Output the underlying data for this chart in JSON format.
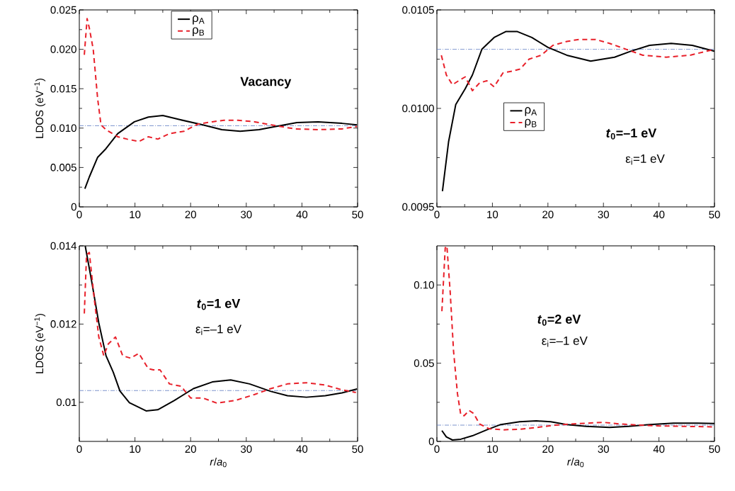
{
  "chart_data": [
    {
      "type": "line",
      "ylabel": "LDOS (eV$^{−1}$)",
      "xlim": [
        0,
        50
      ],
      "xticks": [
        0,
        10,
        20,
        30,
        40,
        50
      ],
      "ylim": [
        0,
        0.025
      ],
      "yticks": [
        0,
        {
          "value": 0.005,
          "label": "0.005"
        },
        {
          "value": 0.01,
          "label": "0.010"
        },
        {
          "value": 0.015,
          "label": "0.015"
        },
        {
          "value": 0.02,
          "label": "0.020"
        },
        {
          "value": 0.025,
          "label": "0.025"
        }
      ],
      "legend": "top",
      "annotations": [
        "Vacancy"
      ],
      "ref_lines": [
        {
          "axis": "y",
          "value": 0.0103,
          "color": "#5a78c0",
          "line_style": "dashdot"
        }
      ],
      "series": [
        {
          "name": "ρ$_{A}$",
          "color": "#000000",
          "line_style": "solid",
          "x": [
            1,
            1.8,
            3.3,
            4.8,
            6.9,
            9.9,
            12.4,
            15,
            17.9,
            22.2,
            25.6,
            28.9,
            32.3,
            35.3,
            39.1,
            42.9,
            47.2,
            49.9
          ],
          "values": [
            0.0023,
            0.0038,
            0.0063,
            0.0074,
            0.0093,
            0.0108,
            0.0114,
            0.0116,
            0.0111,
            0.0104,
            0.0098,
            0.0096,
            0.0098,
            0.0102,
            0.0107,
            0.0108,
            0.0106,
            0.0104
          ]
        },
        {
          "name": "ρ$_{B}$",
          "color": "#e8202a",
          "line_style": "dashed",
          "x": [
            0.9,
            1.4,
            1.8,
            2.5,
            3.3,
            3.9,
            4.8,
            6.9,
            8.6,
            10.7,
            12.4,
            14.1,
            16.2,
            18.8,
            21.3,
            23.9,
            26,
            28.5,
            31.5,
            34.5,
            38.7,
            42.9,
            47.2,
            49.9
          ],
          "values": [
            0.0193,
            0.0239,
            0.0227,
            0.02,
            0.0137,
            0.0104,
            0.0098,
            0.0089,
            0.0086,
            0.0083,
            0.0089,
            0.0086,
            0.0093,
            0.0096,
            0.0105,
            0.0108,
            0.011,
            0.011,
            0.0108,
            0.0104,
            0.0099,
            0.0098,
            0.0099,
            0.0102
          ]
        }
      ]
    },
    {
      "type": "line",
      "xlim": [
        0,
        50
      ],
      "xticks": [
        0,
        10,
        20,
        30,
        40,
        50
      ],
      "ylim": [
        0.0095,
        0.0105
      ],
      "yticks": [
        {
          "value": 0.0095,
          "label": "0.0095"
        },
        {
          "value": 0.01,
          "label": "0.0100"
        },
        {
          "value": 0.0105,
          "label": "0.0105"
        }
      ],
      "legend": "left",
      "annotations": [
        "*t*$_{0}$=–1 eV",
        "ε$_{i}$=1 eV"
      ],
      "ref_lines": [
        {
          "axis": "y",
          "value": 0.0103,
          "color": "#5a78c0",
          "line_style": "dashdot"
        }
      ],
      "series": [
        {
          "name": "ρ$_{A}$",
          "color": "#000000",
          "line_style": "solid",
          "x": [
            1,
            2.1,
            3.4,
            5.1,
            6.4,
            8.1,
            10.3,
            12.4,
            14.5,
            17.1,
            20,
            23.4,
            27.7,
            32,
            34.9,
            38.3,
            42.2,
            46,
            50
          ],
          "values": [
            0.00958,
            0.00983,
            0.01002,
            0.0101,
            0.01017,
            0.0103,
            0.01036,
            0.01039,
            0.01039,
            0.01036,
            0.01031,
            0.01027,
            0.01024,
            0.01026,
            0.01029,
            0.01032,
            0.01033,
            0.01032,
            0.01029
          ]
        },
        {
          "name": "ρ$_{B}$",
          "color": "#e8202a",
          "line_style": "dashed",
          "x": [
            0.8,
            1.7,
            2.8,
            3.9,
            5.1,
            6.4,
            7.7,
            9,
            10.3,
            11.9,
            13.7,
            15,
            16.6,
            18.8,
            20.9,
            23.4,
            25.6,
            28.6,
            31.1,
            34.1,
            37.1,
            41.3,
            45.6,
            50
          ],
          "values": [
            0.01027,
            0.01017,
            0.01012,
            0.01014,
            0.01016,
            0.01009,
            0.01013,
            0.01014,
            0.01011,
            0.01018,
            0.01019,
            0.0102,
            0.01025,
            0.01027,
            0.01032,
            0.01034,
            0.01035,
            0.01035,
            0.01033,
            0.0103,
            0.01027,
            0.01026,
            0.01027,
            0.0103
          ]
        }
      ]
    },
    {
      "type": "line",
      "xlabel": "*r*/*a*$_{0}$",
      "ylabel": "LDOS (eV$^{−1}$)",
      "xlim": [
        0,
        50
      ],
      "xticks": [
        0,
        10,
        20,
        30,
        40,
        50
      ],
      "ylim": [
        0.009,
        0.014
      ],
      "yticks": [
        0.01,
        0.012,
        0.014
      ],
      "annotations": [
        "*t*$_{0}$=1 eV",
        "ε$_{i}$=–1 eV"
      ],
      "ref_lines": [
        {
          "axis": "y",
          "value": 0.0103,
          "color": "#5a78c0",
          "line_style": "dashdot"
        }
      ],
      "series": [
        {
          "color": "#000000",
          "line_style": "solid",
          "x": [
            1.06,
            2.2,
            3.5,
            4.8,
            6.1,
            7.3,
            9,
            12,
            14.1,
            17.1,
            20.5,
            23.9,
            27.2,
            30.6,
            34.4,
            37.4,
            40.8,
            44.2,
            47.2,
            49.9
          ],
          "values": [
            0.014,
            0.01311,
            0.01203,
            0.01119,
            0.01077,
            0.01029,
            0.00999,
            0.00978,
            0.00981,
            0.01005,
            0.01035,
            0.01052,
            0.01057,
            0.01047,
            0.01028,
            0.01017,
            0.01013,
            0.01017,
            0.01024,
            0.01034
          ]
        },
        {
          "color": "#e8202a",
          "line_style": "dashed",
          "x": [
            0.9,
            1.3,
            1.8,
            2.7,
            3.5,
            4.4,
            5.2,
            6.5,
            7.8,
            9.2,
            10.7,
            12.4,
            13.3,
            14.5,
            16.2,
            18.3,
            20,
            22.2,
            24.7,
            28.1,
            31.5,
            34.4,
            37.4,
            40.8,
            44.2,
            47.2,
            49.7
          ],
          "values": [
            0.01227,
            0.01377,
            0.01383,
            0.01263,
            0.01167,
            0.01119,
            0.01149,
            0.01167,
            0.01119,
            0.01113,
            0.01125,
            0.01086,
            0.01083,
            0.01083,
            0.01047,
            0.01041,
            0.01011,
            0.01011,
            0.00998,
            0.01005,
            0.0102,
            0.01035,
            0.01047,
            0.0105,
            0.01044,
            0.01032,
            0.01025
          ]
        }
      ]
    },
    {
      "type": "line",
      "xlabel": "*r*/*a*$_{0}$",
      "xlim": [
        0,
        50
      ],
      "xticks": [
        0,
        10,
        20,
        30,
        40,
        50
      ],
      "ylim": [
        0,
        0.125
      ],
      "yticks": [
        0,
        0.05,
        {
          "value": 0.1,
          "label": "0.10"
        }
      ],
      "annotations": [
        "*t*$_{0}$=2 eV",
        "ε$_{i}$=–1 eV"
      ],
      "ref_lines": [
        {
          "axis": "y",
          "value": 0.0104,
          "color": "#5a78c0",
          "line_style": "dashdot"
        }
      ],
      "series": [
        {
          "color": "#000000",
          "line_style": "solid",
          "x": [
            0.9,
            1.7,
            2.8,
            4.3,
            6.4,
            9,
            11.5,
            14.9,
            17.9,
            20.5,
            23.4,
            26.9,
            31.1,
            34.5,
            38.3,
            42.6,
            46.9,
            50
          ],
          "values": [
            0.0069,
            0.0029,
            0.0009,
            0.0014,
            0.0036,
            0.0074,
            0.0108,
            0.0126,
            0.0131,
            0.0126,
            0.0108,
            0.0096,
            0.0089,
            0.0096,
            0.0108,
            0.0117,
            0.0117,
            0.0114
          ]
        },
        {
          "color": "#e8202a",
          "line_style": "dashed",
          "x": [
            0.9,
            1.5,
            1.8,
            2.4,
            3,
            3.7,
            4.3,
            4.9,
            5.8,
            6.6,
            7.7,
            9.4,
            11.9,
            14.9,
            17.9,
            21.3,
            25.6,
            29.9,
            33.2,
            36.2,
            40.4,
            44.7,
            50
          ],
          "values": [
            0.0832,
            0.1237,
            0.125,
            0.0952,
            0.0577,
            0.0306,
            0.0171,
            0.0164,
            0.0198,
            0.0179,
            0.0111,
            0.0081,
            0.0074,
            0.0078,
            0.0089,
            0.0104,
            0.0114,
            0.0122,
            0.0111,
            0.0104,
            0.0099,
            0.0096,
            0.0093
          ]
        }
      ]
    }
  ]
}
